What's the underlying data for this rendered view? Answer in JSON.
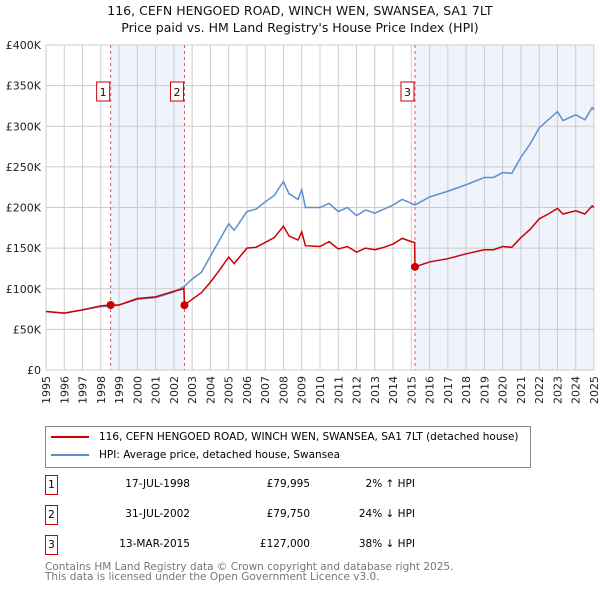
{
  "chart_data": {
    "type": "line",
    "title": "116, CEFN HENGOED ROAD, WINCH WEN, SWANSEA, SA1 7LT",
    "subtitle": "Price paid vs. HM Land Registry's House Price Index (HPI)",
    "xlabel": "",
    "ylabel": "",
    "xlim": [
      1995,
      2025
    ],
    "ylim": [
      0,
      400000
    ],
    "y_ticks": [
      0,
      50000,
      100000,
      150000,
      200000,
      250000,
      300000,
      350000,
      400000
    ],
    "y_tick_labels": [
      "£0",
      "£50K",
      "£100K",
      "£150K",
      "£200K",
      "£250K",
      "£300K",
      "£350K",
      "£400K"
    ],
    "x_tick_labels": [
      "1995",
      "1996",
      "1997",
      "1998",
      "1999",
      "2000",
      "2001",
      "2002",
      "2003",
      "2004",
      "2005",
      "2006",
      "2007",
      "2008",
      "2009",
      "2010",
      "2011",
      "2012",
      "2013",
      "2014",
      "2015",
      "2016",
      "2017",
      "2018",
      "2019",
      "2020",
      "2021",
      "2022",
      "2023",
      "2024",
      "2025"
    ],
    "grid": true,
    "shaded_periods": [
      [
        1998.54,
        2002.58
      ],
      [
        2015.2,
        2025
      ]
    ],
    "series": [
      {
        "name": "116, CEFN HENGOED ROAD, WINCH WEN, SWANSEA, SA1 7LT (detached house)",
        "color": "#cc0000",
        "x": [
          1995,
          1996,
          1997,
          1998,
          1998.54,
          1999,
          2000,
          2001,
          2002,
          2002.55,
          2002.58,
          2003,
          2003.5,
          2004,
          2004.5,
          2005,
          2005.3,
          2006,
          2006.5,
          2007,
          2007.5,
          2008,
          2008.3,
          2008.8,
          2009,
          2009.2,
          2010,
          2010.5,
          2011,
          2011.5,
          2012,
          2012.5,
          2013,
          2013.5,
          2014,
          2014.5,
          2015,
          2015.18,
          2015.2,
          2016,
          2017,
          2018,
          2019,
          2019.5,
          2020,
          2020.5,
          2021,
          2021.5,
          2022,
          2022.5,
          2023,
          2023.3,
          2024,
          2024.5,
          2024.9,
          2025
        ],
        "values": [
          72,
          70,
          74,
          79,
          80,
          80,
          88,
          90,
          97,
          100,
          79.75,
          87,
          95,
          108,
          123,
          139,
          131,
          150,
          151,
          157,
          163,
          177,
          165,
          160,
          170,
          153,
          152,
          158,
          149,
          152,
          145,
          150,
          148,
          151,
          155,
          162,
          158,
          157,
          127,
          133,
          137,
          143,
          148,
          148,
          152,
          151,
          163,
          173,
          186,
          192,
          199,
          192,
          196,
          192,
          202,
          200
        ],
        "unit": "thousand GBP"
      },
      {
        "name": "HPI: Average price, detached house, Swansea",
        "color": "#5b8fd0",
        "x": [
          1995,
          1996,
          1997,
          1998,
          1998.54,
          1999,
          2000,
          2001,
          2002,
          2002.58,
          2003,
          2003.5,
          2004,
          2004.5,
          2005,
          2005.3,
          2006,
          2006.5,
          2007,
          2007.5,
          2008,
          2008.3,
          2008.8,
          2009,
          2009.2,
          2010,
          2010.5,
          2011,
          2011.5,
          2012,
          2012.5,
          2013,
          2013.5,
          2014,
          2014.5,
          2015,
          2015.2,
          2016,
          2017,
          2018,
          2019,
          2019.5,
          2020,
          2020.5,
          2021,
          2021.5,
          2022,
          2022.5,
          2023,
          2023.3,
          2024,
          2024.5,
          2024.9,
          2025
        ],
        "values": [
          72,
          70,
          74,
          78,
          78.5,
          80,
          87,
          89,
          96,
          103,
          112,
          120,
          140,
          160,
          180,
          172,
          195,
          198,
          207,
          215,
          232,
          217,
          210,
          222,
          200,
          200,
          205,
          195,
          200,
          190,
          197,
          193,
          198,
          203,
          210,
          205,
          203,
          213,
          220,
          228,
          237,
          237,
          243,
          242,
          262,
          278,
          298,
          308,
          318,
          307,
          314,
          308,
          323,
          320
        ],
        "unit": "thousand GBP"
      }
    ],
    "sales": [
      {
        "label": "1",
        "x": 1998.54,
        "price": 79995,
        "date": "17-JUL-1998",
        "price_text": "£79,995",
        "hpi_text": "2% ↑ HPI"
      },
      {
        "label": "2",
        "x": 2002.58,
        "price": 79750,
        "date": "31-JUL-2002",
        "price_text": "£79,750",
        "hpi_text": "24% ↓ HPI"
      },
      {
        "label": "3",
        "x": 2015.2,
        "price": 127000,
        "date": "13-MAR-2015",
        "price_text": "£127,000",
        "hpi_text": "38% ↓ HPI"
      }
    ],
    "legend_position": "below"
  },
  "footer": {
    "line1": "Contains HM Land Registry data © Crown copyright and database right 2025.",
    "line2": "This data is licensed under the Open Government Licence v3.0."
  }
}
